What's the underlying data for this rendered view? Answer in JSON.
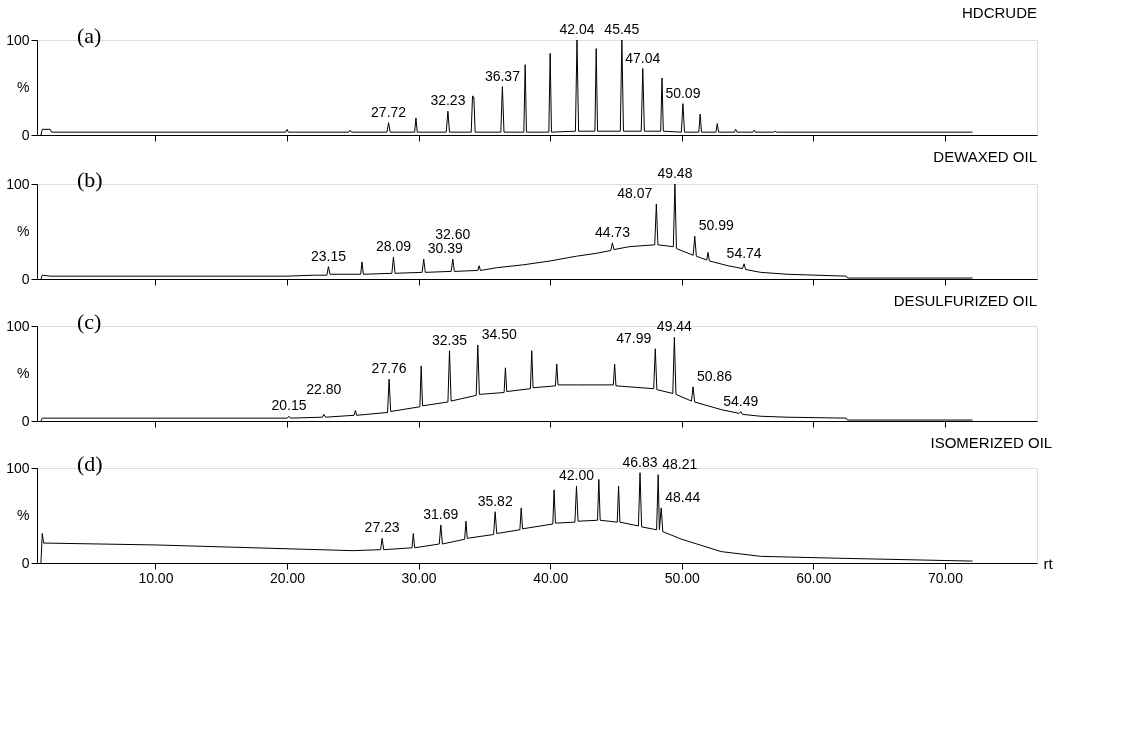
{
  "chart_data": [
    {
      "type": "line",
      "title": "HDCRUDE",
      "ylabel": "%",
      "color": "#000000",
      "line_style": "solid",
      "tick_labels": "y",
      "xlim": [
        1,
        77
      ],
      "ylim": [
        0,
        100
      ],
      "xticks": [
        {
          "value": 10,
          "label": null
        },
        {
          "value": 20,
          "label": null
        },
        {
          "value": 30,
          "label": null
        },
        {
          "value": 40,
          "label": null
        },
        {
          "value": 50,
          "label": null
        },
        {
          "value": 60,
          "label": null
        },
        {
          "value": 70,
          "label": null
        }
      ],
      "yticks": [
        0,
        100
      ],
      "x": [
        1.3,
        1.4,
        2.0,
        2.1,
        19.9,
        20.0,
        20.1,
        24.7,
        24.8,
        24.9,
        27.6,
        27.72,
        27.84,
        29.7,
        29.8,
        29.9,
        32.1,
        32.23,
        32.35,
        34.0,
        34.1,
        34.2,
        34.3,
        36.25,
        36.37,
        36.49,
        38.0,
        38.1,
        38.2,
        39.9,
        40.0,
        40.1,
        41.92,
        42.04,
        42.16,
        43.4,
        43.5,
        43.6,
        45.33,
        45.45,
        45.57,
        46.92,
        47.04,
        47.16,
        48.4,
        48.5,
        48.6,
        49.97,
        50.09,
        50.21,
        51.3,
        51.4,
        51.5,
        52.6,
        52.7,
        52.8,
        54.0,
        54.1,
        54.2,
        55.4,
        55.5,
        55.6,
        57.0,
        57.1,
        57.2,
        72.1
      ],
      "values": [
        0,
        6,
        6,
        3,
        3,
        6,
        3,
        3,
        5,
        3,
        3,
        13,
        3,
        3,
        18,
        3,
        3,
        25,
        3,
        3,
        41,
        40,
        3,
        3,
        51,
        3,
        3,
        74,
        3,
        3,
        86,
        3,
        4,
        100,
        4,
        4,
        91,
        4,
        4,
        100,
        4,
        4,
        70,
        4,
        4,
        60,
        4,
        3,
        33,
        3,
        3,
        22,
        3,
        3,
        12,
        3,
        3,
        6,
        3,
        3,
        5,
        3,
        3,
        4,
        3,
        3
      ],
      "annotations": [
        "(a)",
        {
          "text": "27.72",
          "x": 27.72,
          "y": 13
        },
        {
          "text": "32.23",
          "x": 32.23,
          "y": 25
        },
        {
          "text": "36.37",
          "x": 36.37,
          "y": 51
        },
        {
          "text": "42.04",
          "x": 42.04,
          "y": 100
        },
        {
          "text": "45.45",
          "x": 45.45,
          "y": 100
        },
        {
          "text": "47.04",
          "x": 47.04,
          "y": 70
        },
        {
          "text": "50.09",
          "x": 50.09,
          "y": 33
        }
      ]
    },
    {
      "type": "line",
      "title": "DEWAXED OIL",
      "ylabel": "%",
      "color": "#000000",
      "line_style": "solid",
      "tick_labels": "y",
      "xlim": [
        1,
        77
      ],
      "ylim": [
        0,
        100
      ],
      "xticks": [
        {
          "value": 10,
          "label": null
        },
        {
          "value": 20,
          "label": null
        },
        {
          "value": 30,
          "label": null
        },
        {
          "value": 40,
          "label": null
        },
        {
          "value": 50,
          "label": null
        },
        {
          "value": 60,
          "label": null
        },
        {
          "value": 70,
          "label": null
        }
      ],
      "yticks": [
        0,
        100
      ],
      "x": [
        1.3,
        1.4,
        2.0,
        20,
        22.0,
        23.03,
        23.15,
        23.27,
        25.6,
        25.7,
        25.8,
        27.97,
        28.09,
        28.21,
        30.27,
        30.39,
        30.51,
        32.48,
        32.6,
        32.72,
        34.5,
        34.6,
        34.7,
        36,
        38,
        40,
        42,
        43.5,
        44.61,
        44.73,
        44.85,
        46,
        47.95,
        48.07,
        48.19,
        49.36,
        49.48,
        49.6,
        50.87,
        50.99,
        51.11,
        51.9,
        52.0,
        52.1,
        53.5,
        54.62,
        54.74,
        54.86,
        56,
        58,
        62.5,
        62.6,
        72.1
      ],
      "values": [
        0,
        4,
        3,
        3,
        4,
        4,
        13,
        5,
        5,
        18,
        5,
        6,
        23,
        6,
        7,
        21,
        7,
        8,
        21,
        8,
        9,
        14,
        9,
        12,
        15,
        19,
        24,
        27,
        30,
        38,
        31,
        34,
        36,
        79,
        36,
        34,
        100,
        32,
        25,
        45,
        24,
        20,
        28,
        19,
        14,
        11,
        16,
        10,
        7,
        5,
        3,
        1,
        1
      ],
      "annotations": [
        "(b)",
        {
          "text": "23.15",
          "x": 23.15,
          "y": 13
        },
        {
          "text": "28.09",
          "x": 28.09,
          "y": 23
        },
        {
          "text": "30.39",
          "x": 30.39,
          "y": 21
        },
        {
          "text": "32.60",
          "x": 32.6,
          "y": 21
        },
        {
          "text": "44.73",
          "x": 44.73,
          "y": 38
        },
        {
          "text": "48.07",
          "x": 48.07,
          "y": 79
        },
        {
          "text": "49.48",
          "x": 49.48,
          "y": 100
        },
        {
          "text": "50.99",
          "x": 50.99,
          "y": 45
        },
        {
          "text": "54.74",
          "x": 54.74,
          "y": 16
        }
      ]
    },
    {
      "type": "line",
      "title": "DESULFURIZED OIL",
      "ylabel": "%",
      "color": "#000000",
      "line_style": "solid",
      "tick_labels": "y",
      "xlim": [
        1,
        77
      ],
      "ylim": [
        0,
        100
      ],
      "xticks": [
        {
          "value": 10,
          "label": null
        },
        {
          "value": 20,
          "label": null
        },
        {
          "value": 30,
          "label": null
        },
        {
          "value": 40,
          "label": null
        },
        {
          "value": 50,
          "label": null
        },
        {
          "value": 60,
          "label": null
        },
        {
          "value": 70,
          "label": null
        }
      ],
      "yticks": [
        0,
        100
      ],
      "x": [
        1.3,
        1.4,
        2,
        20.03,
        20.15,
        20.27,
        22.68,
        22.8,
        22.92,
        25.1,
        25.2,
        25.3,
        27.64,
        27.76,
        27.88,
        30.1,
        30.2,
        30.3,
        32.23,
        32.35,
        32.47,
        34.38,
        34.5,
        34.62,
        36.5,
        36.6,
        36.7,
        38.5,
        38.6,
        38.7,
        40.4,
        40.5,
        40.6,
        42,
        44.8,
        44.9,
        45.0,
        47.87,
        47.99,
        48.11,
        49.32,
        49.44,
        49.56,
        50.74,
        50.86,
        50.98,
        53,
        54.37,
        54.49,
        54.61,
        56,
        58,
        62.5,
        62.6,
        72.1
      ],
      "values": [
        0,
        3,
        3,
        3,
        5,
        3,
        4,
        7,
        4,
        6,
        11,
        6,
        9,
        44,
        10,
        15,
        58,
        16,
        20,
        74,
        21,
        27,
        80,
        28,
        30,
        56,
        31,
        34,
        74,
        35,
        37,
        60,
        38,
        38,
        38,
        60,
        37,
        34,
        76,
        33,
        29,
        88,
        28,
        21,
        36,
        20,
        12,
        8,
        10,
        7,
        5,
        4,
        3,
        1,
        1
      ],
      "annotations": [
        "(c)",
        {
          "text": "20.15",
          "x": 20.15,
          "y": 5
        },
        {
          "text": "22.80",
          "x": 22.8,
          "y": 7
        },
        {
          "text": "27.76",
          "x": 27.76,
          "y": 44
        },
        {
          "text": "32.35",
          "x": 32.35,
          "y": 74
        },
        {
          "text": "34.50",
          "x": 34.5,
          "y": 80
        },
        {
          "text": "47.99",
          "x": 47.99,
          "y": 76
        },
        {
          "text": "49.44",
          "x": 49.44,
          "y": 88
        },
        {
          "text": "50.86",
          "x": 50.86,
          "y": 36
        },
        {
          "text": "54.49",
          "x": 54.49,
          "y": 10
        }
      ]
    },
    {
      "type": "line",
      "title": "ISOMERIZED OIL",
      "ylabel": "%",
      "color": "#000000",
      "line_style": "solid",
      "xlabel": "rt",
      "xlim": [
        1,
        77
      ],
      "ylim": [
        0,
        100
      ],
      "xticks": [
        {
          "value": 10,
          "label": "10.00"
        },
        {
          "value": 20,
          "label": "20.00"
        },
        {
          "value": 30,
          "label": "30.00"
        },
        {
          "value": 40,
          "label": "40.00"
        },
        {
          "value": 50,
          "label": "50.00"
        },
        {
          "value": 60,
          "label": "60.00"
        },
        {
          "value": 70,
          "label": "70.00"
        }
      ],
      "yticks": [
        0,
        100
      ],
      "x": [
        1.3,
        1.4,
        1.5,
        10,
        20,
        25,
        27.11,
        27.23,
        27.35,
        29.5,
        29.6,
        29.7,
        31.57,
        31.69,
        31.81,
        33.5,
        33.6,
        33.7,
        35.7,
        35.82,
        35.94,
        37.7,
        37.8,
        37.9,
        40.2,
        40.3,
        40.4,
        41.88,
        42.0,
        42.12,
        43.6,
        43.7,
        43.8,
        45.1,
        45.2,
        45.3,
        46.71,
        46.83,
        46.95,
        48.09,
        48.21,
        48.3,
        48.44,
        48.56,
        50,
        53,
        56,
        62,
        72.1
      ],
      "values": [
        0,
        31,
        21,
        19,
        15,
        13,
        14,
        26,
        14,
        16,
        31,
        16,
        20,
        40,
        20,
        25,
        44,
        26,
        30,
        54,
        31,
        35,
        58,
        36,
        41,
        77,
        42,
        43,
        81,
        44,
        45,
        88,
        45,
        43,
        81,
        43,
        39,
        95,
        38,
        35,
        93,
        35,
        58,
        33,
        25,
        12,
        7,
        5,
        2
      ],
      "annotations": [
        "(d)",
        {
          "text": "27.23",
          "x": 27.23,
          "y": 26
        },
        {
          "text": "31.69",
          "x": 31.69,
          "y": 40
        },
        {
          "text": "35.82",
          "x": 35.82,
          "y": 54
        },
        {
          "text": "42.00",
          "x": 42.0,
          "y": 81
        },
        {
          "text": "46.83",
          "x": 46.83,
          "y": 95
        },
        {
          "text": "48.21",
          "x": 48.21,
          "y": 93
        },
        {
          "text": "48.44",
          "x": 48.44,
          "y": 58
        }
      ]
    }
  ]
}
